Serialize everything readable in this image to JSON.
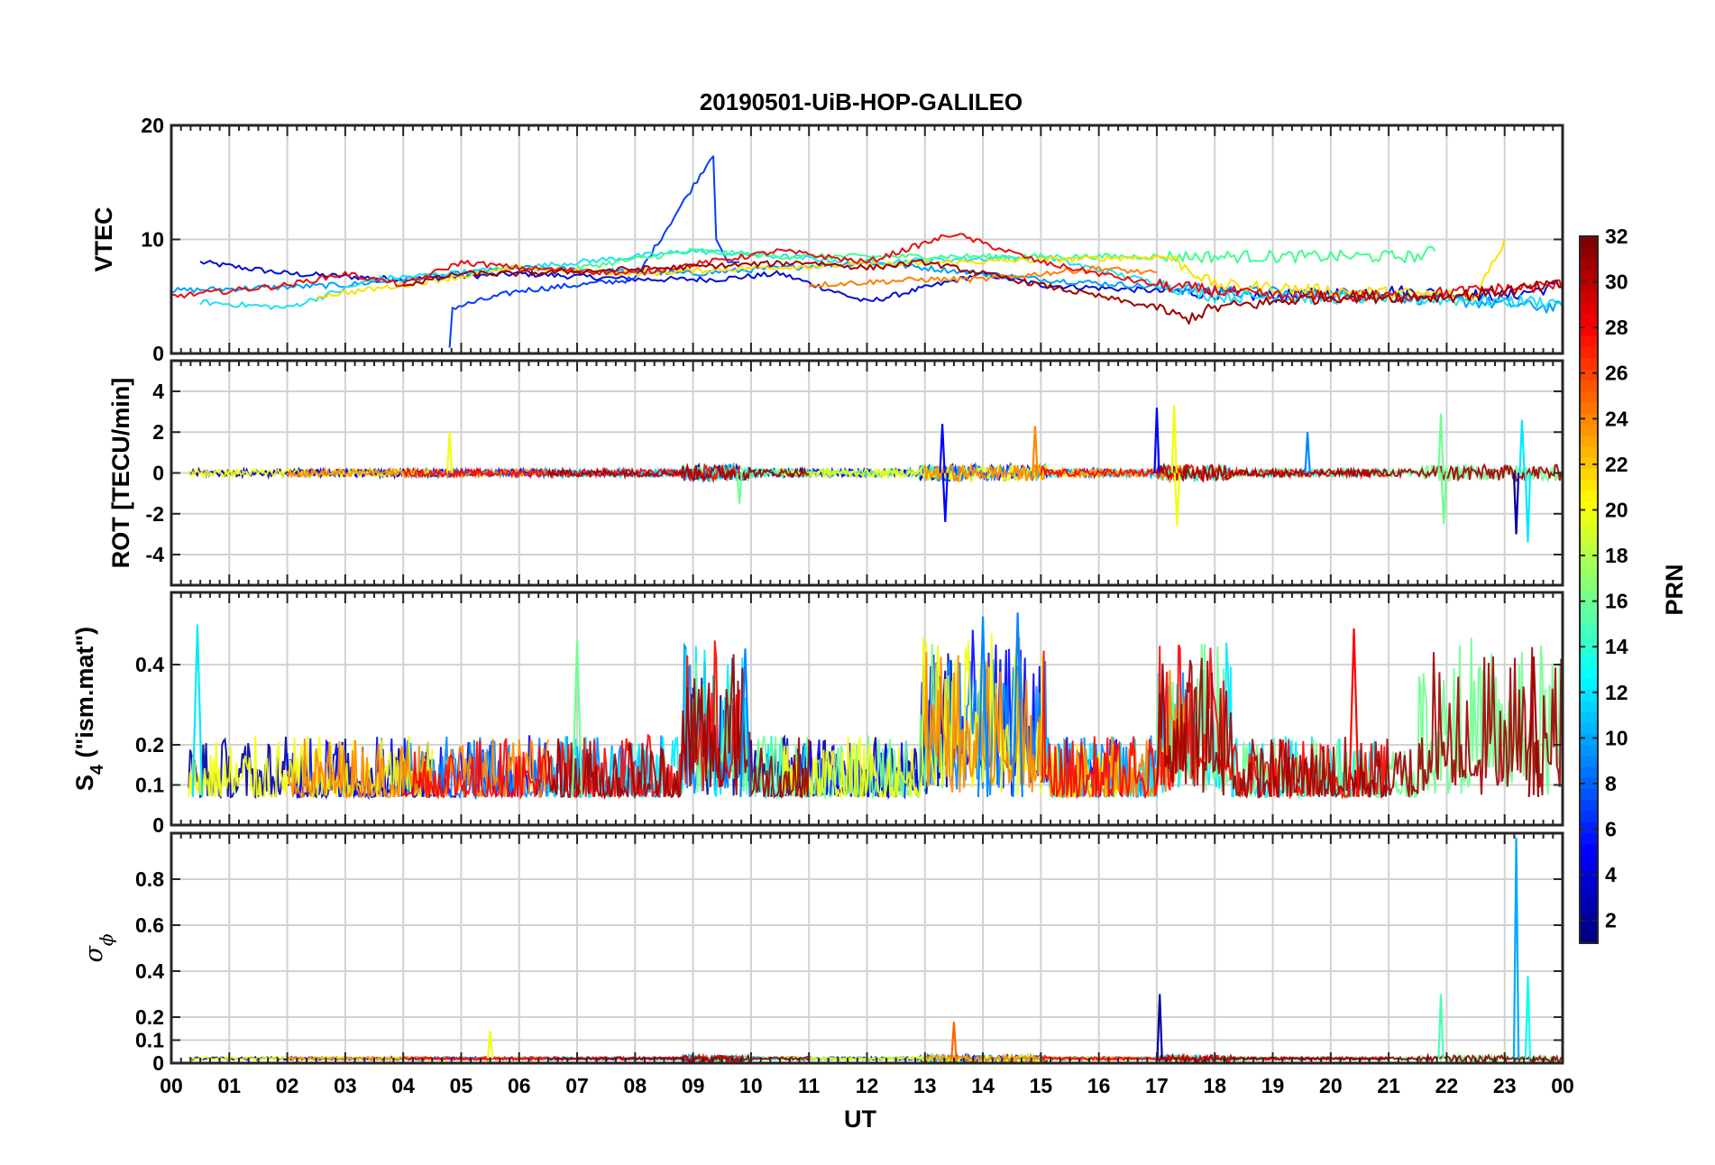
{
  "chart_data": {
    "type": "line",
    "title": "20190501-UiB-HOP-GALILEO",
    "xlabel": "UT",
    "x_ticks": [
      "00",
      "01",
      "02",
      "03",
      "04",
      "05",
      "06",
      "07",
      "08",
      "09",
      "10",
      "11",
      "12",
      "13",
      "14",
      "15",
      "16",
      "17",
      "18",
      "19",
      "20",
      "21",
      "22",
      "23",
      "00"
    ],
    "xlim": [
      0,
      24
    ],
    "grid": true,
    "panels": [
      {
        "id": "vtec",
        "ylabel": "VTEC",
        "ylim": [
          0,
          20
        ],
        "y_ticks": [
          0,
          10,
          20
        ],
        "y_tick_labels": [
          "0",
          "10",
          "20"
        ],
        "baseline": 5.8,
        "noise": 0.5,
        "series": [
          {
            "prn": 2,
            "color": "#0010d0",
            "x": [
              0.5,
              2,
              4,
              6,
              8,
              9.4,
              10.5,
              12,
              14,
              15,
              17,
              19,
              21,
              23,
              24
            ],
            "y": [
              8,
              7,
              6.5,
              7,
              6.5,
              6.5,
              7,
              4.5,
              7,
              6,
              5.5,
              5,
              5.5,
              5,
              6
            ]
          },
          {
            "prn": 5,
            "color": "#0040ff",
            "x": [
              4.8,
              4.85,
              6,
              8,
              9.35,
              9.4,
              9.6,
              9.8
            ],
            "y": [
              0.5,
              4,
              5.5,
              6.5,
              17.5,
              10,
              8,
              8
            ]
          },
          {
            "prn": 9,
            "color": "#00a0ff",
            "x": [
              0,
              3,
              6,
              9,
              12,
              15,
              18,
              21,
              24
            ],
            "y": [
              5.5,
              6,
              7.5,
              7,
              8,
              6.5,
              5.5,
              5,
              4
            ]
          },
          {
            "prn": 12,
            "color": "#20e0f0",
            "x": [
              0.5,
              2,
              3.5,
              6,
              9,
              12,
              15,
              18,
              21,
              24
            ],
            "y": [
              4.5,
              4,
              6.5,
              7.5,
              9,
              8,
              8.5,
              5,
              4.8,
              4.5
            ]
          },
          {
            "prn": 16,
            "color": "#40ff90",
            "x": [
              7,
              9,
              10.5,
              21.5,
              21.8
            ],
            "y": [
              7.5,
              9,
              8.5,
              8.5,
              9
            ]
          },
          {
            "prn": 20,
            "color": "#ffe000",
            "x": [
              2.5,
              4,
              6,
              8,
              10,
              17.2,
              18,
              20,
              22.5,
              23
            ],
            "y": [
              5,
              6,
              7.5,
              7,
              7.5,
              8.5,
              6,
              5.5,
              5,
              10
            ]
          },
          {
            "prn": 24,
            "color": "#ff8000",
            "x": [
              11,
              13,
              14,
              15,
              16,
              17
            ],
            "y": [
              6,
              6.5,
              6.5,
              7,
              7.5,
              7
            ]
          },
          {
            "prn": 28,
            "color": "#e81010",
            "x": [
              0,
              2,
              3,
              4,
              5,
              6,
              8,
              10.5,
              12,
              13.5,
              15,
              17,
              19,
              21,
              24
            ],
            "y": [
              5,
              6,
              7,
              6,
              8,
              7.5,
              7,
              9,
              8,
              10.5,
              8,
              6,
              5,
              5,
              6
            ]
          },
          {
            "prn": 31,
            "color": "#a00000",
            "x": [
              4,
              5,
              6,
              11,
              12,
              13,
              17,
              17.5,
              18,
              20,
              22,
              24
            ],
            "y": [
              6,
              7,
              7,
              8,
              7.5,
              8,
              4,
              3,
              4,
              5,
              5,
              6
            ]
          }
        ]
      },
      {
        "id": "rot",
        "ylabel": "ROT [TECU/min]",
        "ylim": [
          -5.5,
          5.5
        ],
        "y_ticks": [
          -4,
          -2,
          0,
          2,
          4
        ],
        "y_tick_labels": [
          "-4",
          "-2",
          "0",
          "2",
          "4"
        ],
        "baseline": 0,
        "noise": 0.18,
        "spikes": [
          {
            "x": 4.8,
            "y": 2.0,
            "prn": 20
          },
          {
            "x": 9.8,
            "y": -1.5,
            "prn": 16
          },
          {
            "x": 13.3,
            "y": 2.4,
            "prn": 5
          },
          {
            "x": 13.35,
            "y": -2.4,
            "prn": 5
          },
          {
            "x": 14.9,
            "y": 2.3,
            "prn": 24
          },
          {
            "x": 17.0,
            "y": 3.2,
            "prn": 5
          },
          {
            "x": 17.3,
            "y": 3.3,
            "prn": 20
          },
          {
            "x": 17.35,
            "y": -2.6,
            "prn": 20
          },
          {
            "x": 19.6,
            "y": 2.0,
            "prn": 9
          },
          {
            "x": 21.9,
            "y": 2.9,
            "prn": 16
          },
          {
            "x": 21.95,
            "y": -2.5,
            "prn": 16
          },
          {
            "x": 23.3,
            "y": 2.6,
            "prn": 12
          },
          {
            "x": 23.4,
            "y": -3.4,
            "prn": 12
          },
          {
            "x": 23.2,
            "y": -3.0,
            "prn": 2
          }
        ]
      },
      {
        "id": "s4",
        "ylabel_main": "S",
        "ylabel_sub": "4",
        "ylabel_rest": " (\"ism.mat\")",
        "ylim": [
          0,
          0.58
        ],
        "y_ticks": [
          0,
          0.1,
          0.2,
          0.4
        ],
        "y_tick_labels": [
          "0",
          "0.1",
          "0.2",
          "0.4"
        ],
        "baseline": 0.07,
        "noise": 0.07,
        "spikes": [
          {
            "x": 0.45,
            "y": 0.5,
            "prn": 12
          },
          {
            "x": 7.0,
            "y": 0.46,
            "prn": 16
          },
          {
            "x": 9.9,
            "y": 0.44,
            "prn": 9
          },
          {
            "x": 14.0,
            "y": 0.52,
            "prn": 9
          },
          {
            "x": 14.6,
            "y": 0.53,
            "prn": 9
          },
          {
            "x": 20.4,
            "y": 0.49,
            "prn": 28
          },
          {
            "x": 23.5,
            "y": 0.42,
            "prn": 31
          }
        ]
      },
      {
        "id": "sigma",
        "ylabel_main": "σ",
        "ylabel_sub": "ϕ",
        "ylim": [
          0,
          1.0
        ],
        "y_ticks": [
          0,
          0.1,
          0.2,
          0.4,
          0.6,
          0.8
        ],
        "y_tick_labels": [
          "0",
          "0.1",
          "0.2",
          "0.4",
          "0.6",
          "0.8"
        ],
        "baseline": 0.02,
        "noise": 0.012,
        "spikes": [
          {
            "x": 5.5,
            "y": 0.14,
            "prn": 20
          },
          {
            "x": 13.5,
            "y": 0.18,
            "prn": 25
          },
          {
            "x": 17.05,
            "y": 0.3,
            "prn": 2
          },
          {
            "x": 21.9,
            "y": 0.3,
            "prn": 15
          },
          {
            "x": 23.2,
            "y": 0.98,
            "prn": 10
          },
          {
            "x": 23.4,
            "y": 0.38,
            "prn": 13
          }
        ]
      }
    ],
    "colorbar": {
      "label": "PRN",
      "clim": [
        1,
        32
      ],
      "ticks": [
        2,
        4,
        6,
        8,
        10,
        12,
        14,
        16,
        18,
        20,
        22,
        24,
        26,
        28,
        30,
        32
      ],
      "colormap": "jet"
    }
  }
}
